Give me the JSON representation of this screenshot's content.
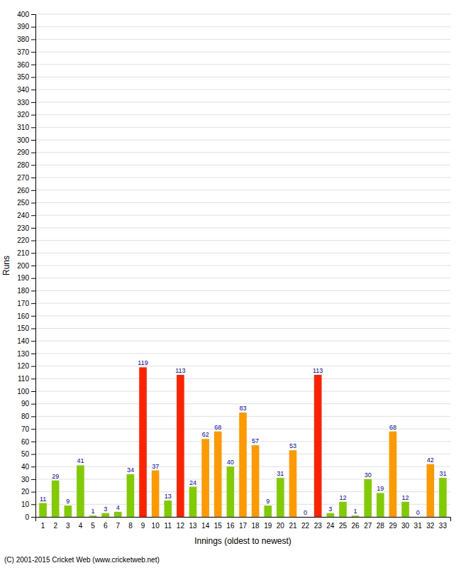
{
  "chart_data": {
    "type": "bar",
    "categories": [
      "1",
      "2",
      "3",
      "4",
      "5",
      "6",
      "7",
      "8",
      "9",
      "10",
      "11",
      "12",
      "13",
      "14",
      "15",
      "16",
      "17",
      "18",
      "19",
      "20",
      "21",
      "22",
      "23",
      "24",
      "25",
      "26",
      "27",
      "28",
      "29",
      "30",
      "31",
      "32",
      "33"
    ],
    "values": [
      11,
      29,
      9,
      41,
      1,
      3,
      4,
      34,
      119,
      37,
      13,
      113,
      24,
      62,
      68,
      40,
      83,
      57,
      9,
      31,
      53,
      0,
      113,
      3,
      12,
      1,
      30,
      19,
      68,
      12,
      0,
      42,
      31
    ],
    "colors": [
      "#80cc00",
      "#80cc00",
      "#80cc00",
      "#80cc00",
      "#80cc00",
      "#80cc00",
      "#80cc00",
      "#80cc00",
      "#ff2200",
      "#ff9900",
      "#80cc00",
      "#ff2200",
      "#80cc00",
      "#ff9900",
      "#ff9900",
      "#80cc00",
      "#ff9900",
      "#ff9900",
      "#80cc00",
      "#80cc00",
      "#ff9900",
      "#80cc00",
      "#ff2200",
      "#80cc00",
      "#80cc00",
      "#80cc00",
      "#80cc00",
      "#80cc00",
      "#ff9900",
      "#80cc00",
      "#80cc00",
      "#ff9900",
      "#80cc00"
    ],
    "xlabel": "Innings (oldest to newest)",
    "ylabel": "Runs",
    "ylim": [
      0,
      400
    ],
    "yticks": [
      0,
      10,
      20,
      30,
      40,
      50,
      60,
      70,
      80,
      90,
      100,
      110,
      120,
      130,
      140,
      150,
      160,
      170,
      180,
      190,
      200,
      210,
      220,
      230,
      240,
      250,
      260,
      270,
      280,
      290,
      300,
      310,
      320,
      330,
      340,
      350,
      360,
      370,
      380,
      390,
      400
    ],
    "grid": true,
    "data_labels": true,
    "annotations": [
      "(C) 2001-2015 Cricket Web (www.cricketweb.net)"
    ]
  }
}
